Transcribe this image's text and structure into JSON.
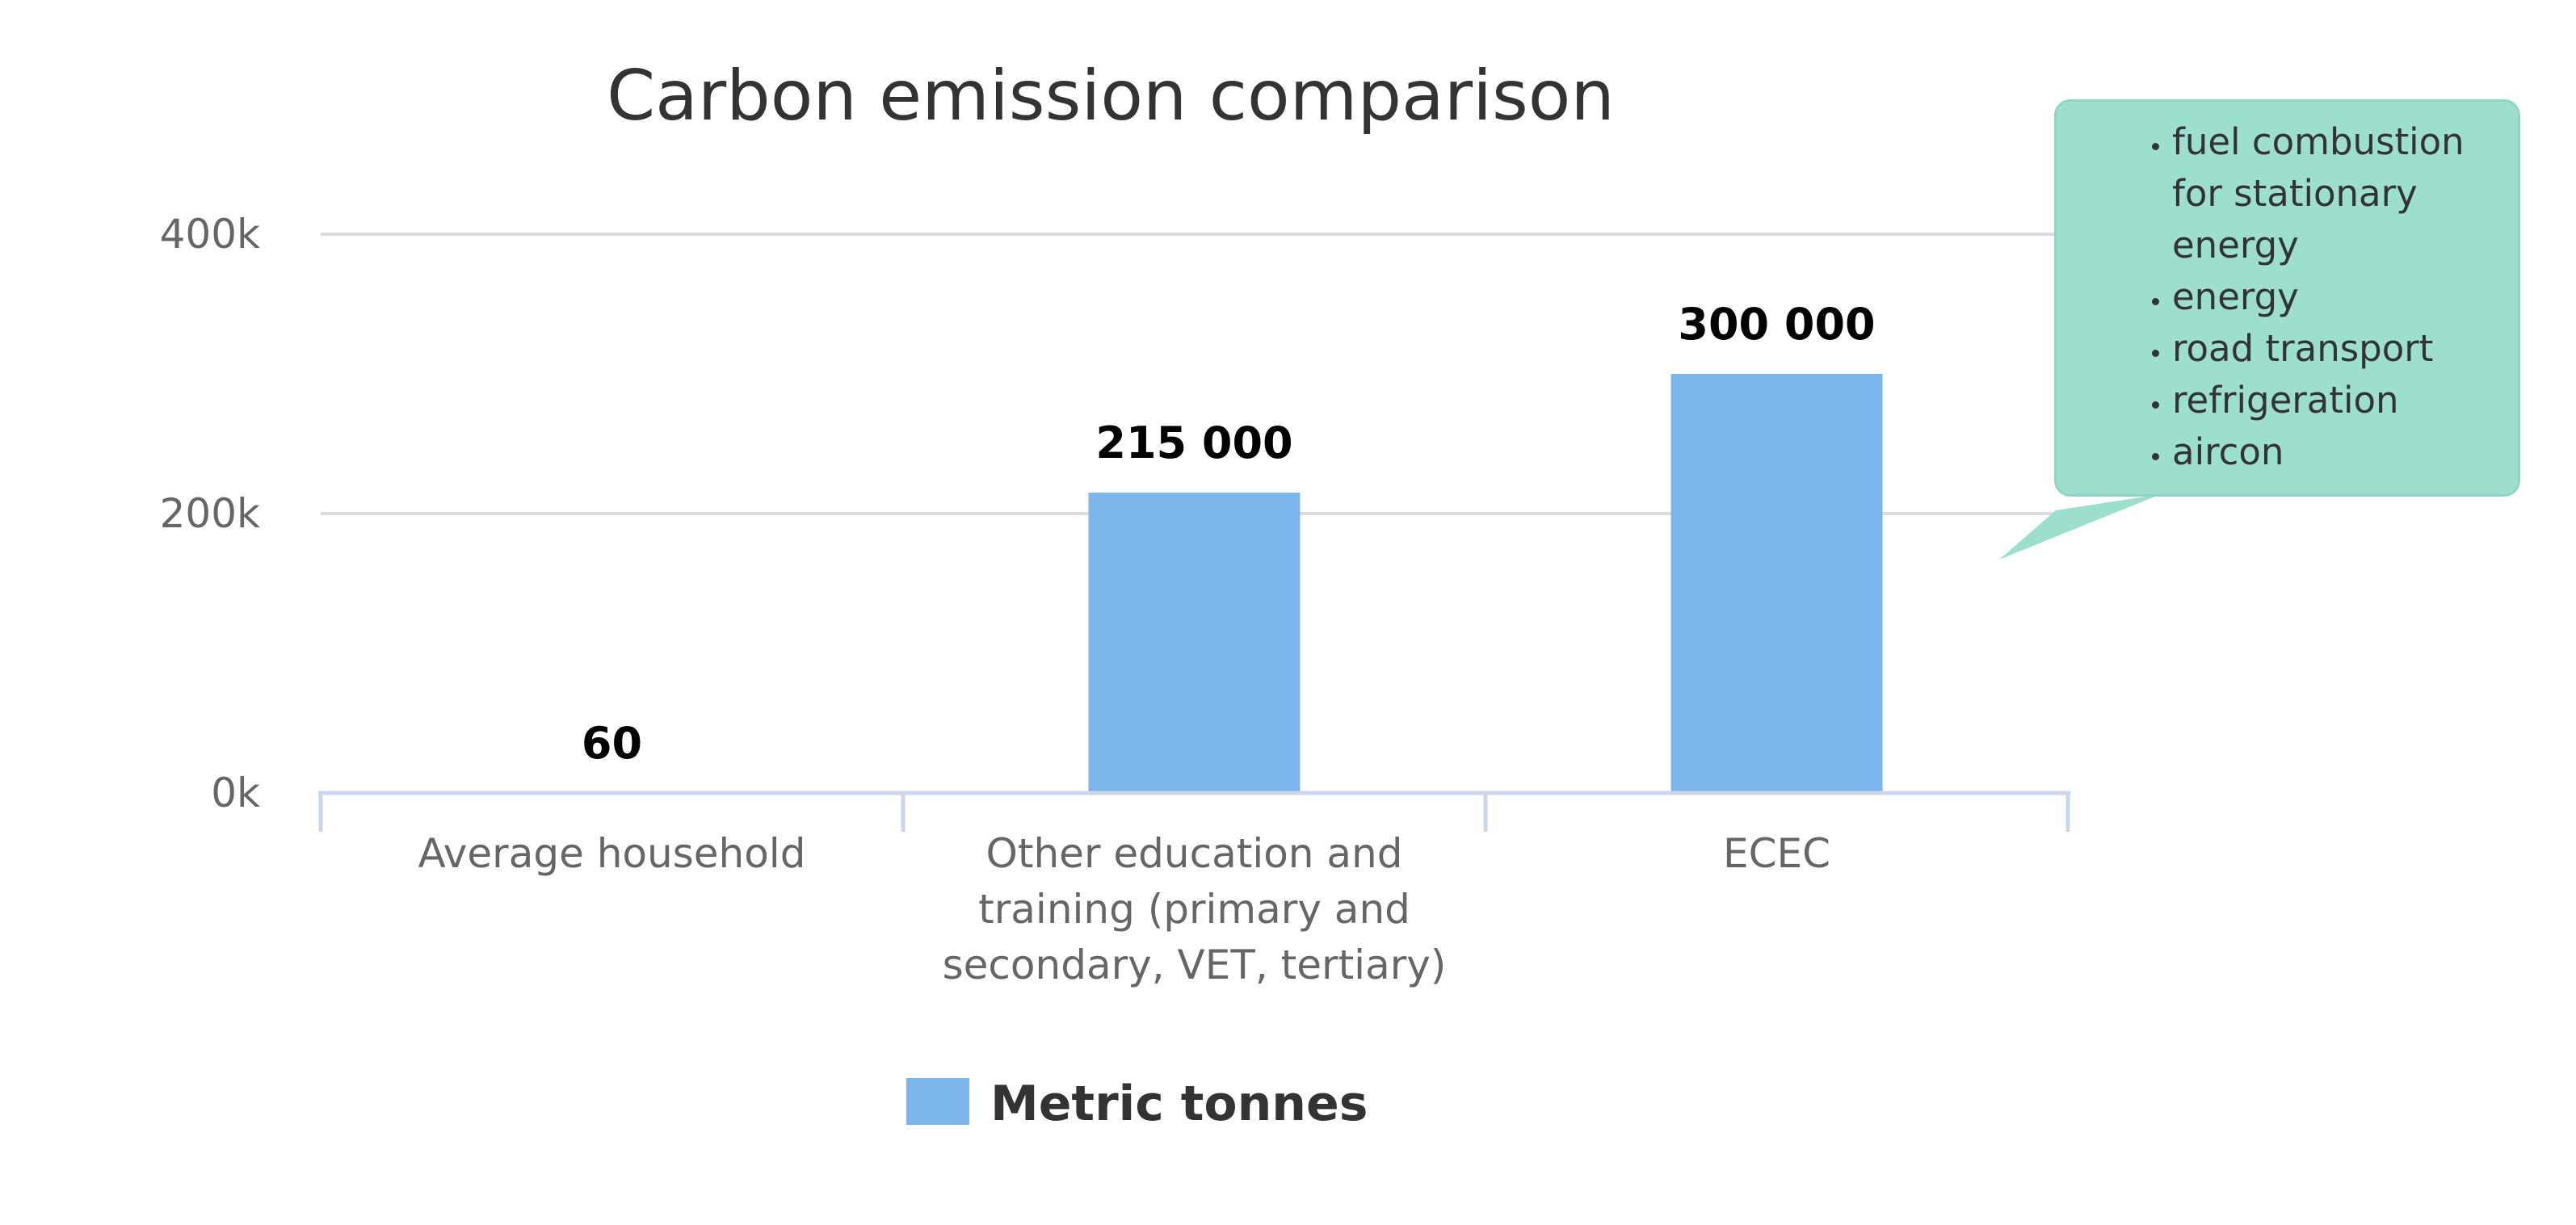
{
  "chart_data": {
    "type": "bar",
    "title": "Carbon emission comparison",
    "xlabel": "",
    "ylabel": "",
    "categories": [
      "Average household",
      "Other education and training (primary and secondary, VET, tertiary)",
      "ECEC"
    ],
    "category_lines": [
      [
        "Average household"
      ],
      [
        "Other education and",
        "training (primary and",
        "secondary, VET, tertiary)"
      ],
      [
        "ECEC"
      ]
    ],
    "series": [
      {
        "name": "Metric tonnes",
        "values": [
          60,
          215000,
          300000
        ],
        "color": "#7cb5ec"
      }
    ],
    "data_labels": [
      "60",
      "215 000",
      "300 000"
    ],
    "ylim": [
      0,
      400000
    ],
    "y_ticks": [
      0,
      200000,
      400000
    ],
    "y_tick_labels": [
      "0k",
      "200k",
      "400k"
    ],
    "grid": true,
    "legend_position": "bottom"
  },
  "callout": {
    "items": [
      "fuel combustion for stationary energy",
      "energy",
      "road transport",
      "refrigeration",
      "aircon"
    ],
    "background": "#9ddfcf"
  }
}
